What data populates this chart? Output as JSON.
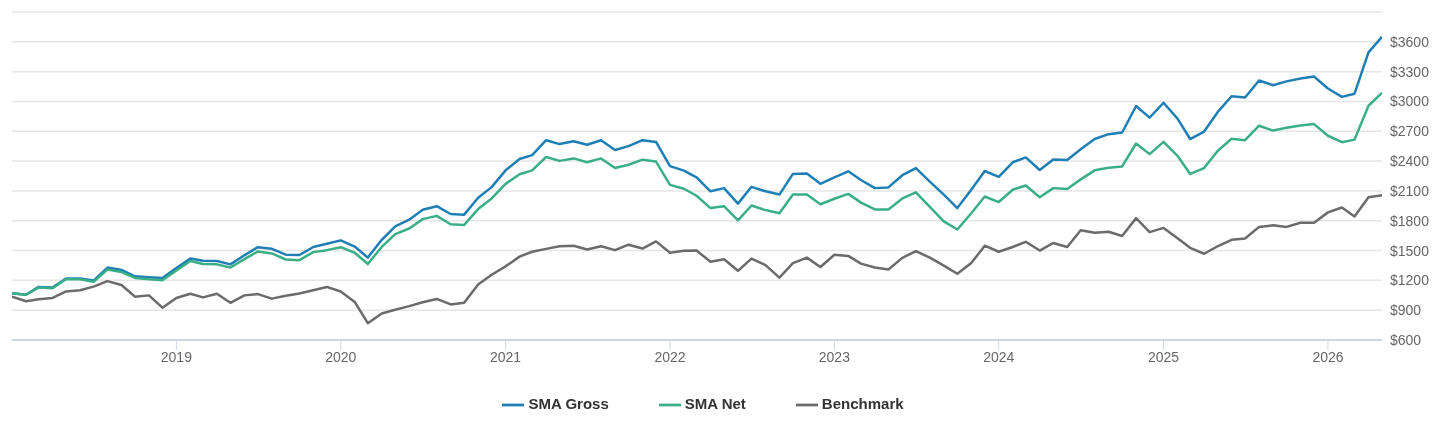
{
  "chart_data": {
    "type": "line",
    "x": [
      "2018-01",
      "2018-02",
      "2018-03",
      "2018-04",
      "2018-05",
      "2018-06",
      "2018-07",
      "2018-08",
      "2018-09",
      "2018-10",
      "2018-11",
      "2018-12",
      "2019-01",
      "2019-02",
      "2019-03",
      "2019-04",
      "2019-05",
      "2019-06",
      "2019-07",
      "2019-08",
      "2019-09",
      "2019-10",
      "2019-11",
      "2019-12",
      "2020-01",
      "2020-02",
      "2020-03",
      "2020-04",
      "2020-05",
      "2020-06",
      "2020-07",
      "2020-08",
      "2020-09",
      "2020-10",
      "2020-11",
      "2020-12",
      "2021-01",
      "2021-02",
      "2021-03",
      "2021-04",
      "2021-05",
      "2021-06",
      "2021-07",
      "2021-08",
      "2021-09",
      "2021-10",
      "2021-11",
      "2021-12",
      "2022-01",
      "2022-02",
      "2022-03",
      "2022-04",
      "2022-05",
      "2022-06",
      "2022-07",
      "2022-08",
      "2022-09",
      "2022-10",
      "2022-11",
      "2022-12",
      "2023-01",
      "2023-02",
      "2023-03",
      "2023-04",
      "2023-05",
      "2023-06",
      "2023-07",
      "2023-08",
      "2023-09",
      "2023-10",
      "2023-11",
      "2023-12",
      "2024-01",
      "2024-02",
      "2024-03",
      "2024-04",
      "2024-05",
      "2024-06",
      "2024-07",
      "2024-08",
      "2024-09",
      "2024-10",
      "2024-11",
      "2024-12",
      "2025-01",
      "2025-02",
      "2025-03",
      "2025-04",
      "2025-05",
      "2025-06",
      "2025-07",
      "2025-08",
      "2025-09",
      "2025-10",
      "2025-11",
      "2025-12",
      "2026-01",
      "2026-02",
      "2026-03",
      "2026-04",
      "2026-05"
    ],
    "series": [
      {
        "name": "SMA Gross",
        "color": "#1f7fb5",
        "values": [
          1071,
          1055,
          1134,
          1127,
          1218,
          1218,
          1198,
          1329,
          1305,
          1241,
          1231,
          1224,
          1325,
          1419,
          1397,
          1394,
          1361,
          1452,
          1534,
          1517,
          1458,
          1455,
          1536,
          1569,
          1602,
          1540,
          1429,
          1608,
          1744,
          1810,
          1910,
          1946,
          1868,
          1861,
          2031,
          2138,
          2307,
          2421,
          2460,
          2610,
          2571,
          2600,
          2564,
          2610,
          2512,
          2551,
          2610,
          2593,
          2349,
          2304,
          2236,
          2096,
          2128,
          1972,
          2141,
          2096,
          2063,
          2271,
          2274,
          2171,
          2236,
          2297,
          2210,
          2128,
          2135,
          2258,
          2330,
          2193,
          2063,
          1927,
          2112,
          2300,
          2242,
          2388,
          2437,
          2310,
          2417,
          2411,
          2519,
          2622,
          2671,
          2688,
          2954,
          2837,
          2987,
          2827,
          2622,
          2697,
          2892,
          3052,
          3039,
          3211,
          3163,
          3202,
          3231,
          3251,
          3130,
          3046,
          3078,
          3494,
          3650
        ]
      },
      {
        "name": "SMA Net",
        "color": "#3aaf85",
        "values": [
          1071,
          1055,
          1127,
          1120,
          1211,
          1211,
          1185,
          1309,
          1283,
          1224,
          1211,
          1202,
          1299,
          1394,
          1364,
          1361,
          1329,
          1413,
          1491,
          1471,
          1410,
          1403,
          1484,
          1504,
          1534,
          1478,
          1364,
          1536,
          1666,
          1722,
          1816,
          1849,
          1764,
          1758,
          1917,
          2024,
          2171,
          2268,
          2307,
          2441,
          2402,
          2427,
          2388,
          2427,
          2330,
          2363,
          2414,
          2395,
          2161,
          2122,
          2051,
          1927,
          1946,
          1803,
          1953,
          1907,
          1875,
          2063,
          2063,
          1966,
          2021,
          2070,
          1982,
          1914,
          1914,
          2024,
          2086,
          1939,
          1793,
          1712,
          1875,
          2044,
          1988,
          2112,
          2154,
          2037,
          2128,
          2119,
          2216,
          2307,
          2334,
          2346,
          2577,
          2470,
          2593,
          2453,
          2271,
          2330,
          2502,
          2625,
          2610,
          2756,
          2707,
          2736,
          2758,
          2772,
          2655,
          2590,
          2616,
          2957,
          3087
        ]
      },
      {
        "name": "Benchmark",
        "color": "#6b6b6b",
        "values": [
          1036,
          990,
          1010,
          1023,
          1088,
          1100,
          1137,
          1192,
          1153,
          1036,
          1049,
          925,
          1023,
          1065,
          1029,
          1065,
          974,
          1049,
          1062,
          1016,
          1046,
          1068,
          1100,
          1134,
          1088,
          983,
          769,
          866,
          905,
          941,
          980,
          1013,
          958,
          974,
          1159,
          1257,
          1341,
          1439,
          1488,
          1517,
          1543,
          1549,
          1510,
          1543,
          1504,
          1559,
          1520,
          1592,
          1478,
          1497,
          1500,
          1387,
          1413,
          1296,
          1419,
          1354,
          1227,
          1374,
          1429,
          1335,
          1458,
          1446,
          1368,
          1329,
          1309,
          1426,
          1494,
          1429,
          1348,
          1266,
          1374,
          1549,
          1488,
          1536,
          1588,
          1500,
          1576,
          1536,
          1705,
          1680,
          1689,
          1647,
          1826,
          1685,
          1728,
          1624,
          1527,
          1468,
          1543,
          1608,
          1621,
          1738,
          1754,
          1738,
          1780,
          1780,
          1884,
          1933,
          1842,
          2037,
          2056
        ]
      }
    ],
    "xlim": [
      "2018-01",
      "2026-05"
    ],
    "xticks": [
      "2019",
      "2020",
      "2021",
      "2022",
      "2023",
      "2024",
      "2025",
      "2026"
    ],
    "ylim": [
      600,
      3900
    ],
    "yticks": [
      {
        "value": 600,
        "label": "$600"
      },
      {
        "value": 900,
        "label": "$900"
      },
      {
        "value": 1200,
        "label": "$1200"
      },
      {
        "value": 1500,
        "label": "$1500"
      },
      {
        "value": 1800,
        "label": "$1800"
      },
      {
        "value": 2100,
        "label": "$2100"
      },
      {
        "value": 2400,
        "label": "$2400"
      },
      {
        "value": 2700,
        "label": "$2700"
      },
      {
        "value": 3000,
        "label": "$3000"
      },
      {
        "value": 3300,
        "label": "$3300"
      },
      {
        "value": 3600,
        "label": "$3600"
      },
      {
        "value": 3900,
        "label": null
      }
    ],
    "grid": "y",
    "legend": "bottom",
    "marker": "none",
    "line_style": "solid"
  }
}
